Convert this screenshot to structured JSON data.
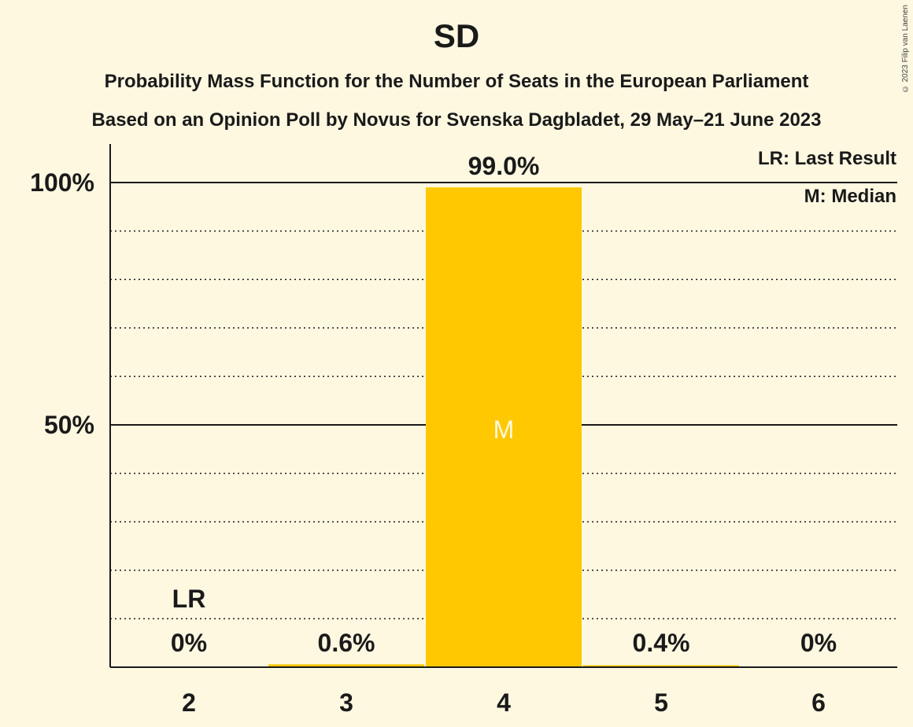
{
  "chart_data": {
    "type": "bar",
    "title": "SD",
    "subtitle_line1": "Probability Mass Function for the Number of Seats in the European Parliament",
    "subtitle_line2": "Based on an Opinion Poll by Novus for Svenska Dagbladet, 29 May–21 June 2023",
    "categories": [
      "2",
      "3",
      "4",
      "5",
      "6"
    ],
    "values": [
      0,
      0.6,
      99.0,
      0.4,
      0
    ],
    "value_labels": [
      "0%",
      "0.6%",
      "99.0%",
      "0.4%",
      "0%"
    ],
    "ylim": [
      0,
      100
    ],
    "y_ticks": [
      {
        "value": 50,
        "label": "50%"
      },
      {
        "value": 100,
        "label": "100%"
      }
    ],
    "minor_gridlines": [
      10,
      20,
      30,
      40,
      60,
      70,
      80,
      90
    ],
    "last_result_category": "2",
    "last_result_marker": "LR",
    "median_category": "4",
    "median_marker": "M",
    "legend": [
      "LR: Last Result",
      "M: Median"
    ],
    "legend_placement": "top-right",
    "bar_color": "#FFC800"
  },
  "copyright": "© 2023 Filip van Laenen"
}
